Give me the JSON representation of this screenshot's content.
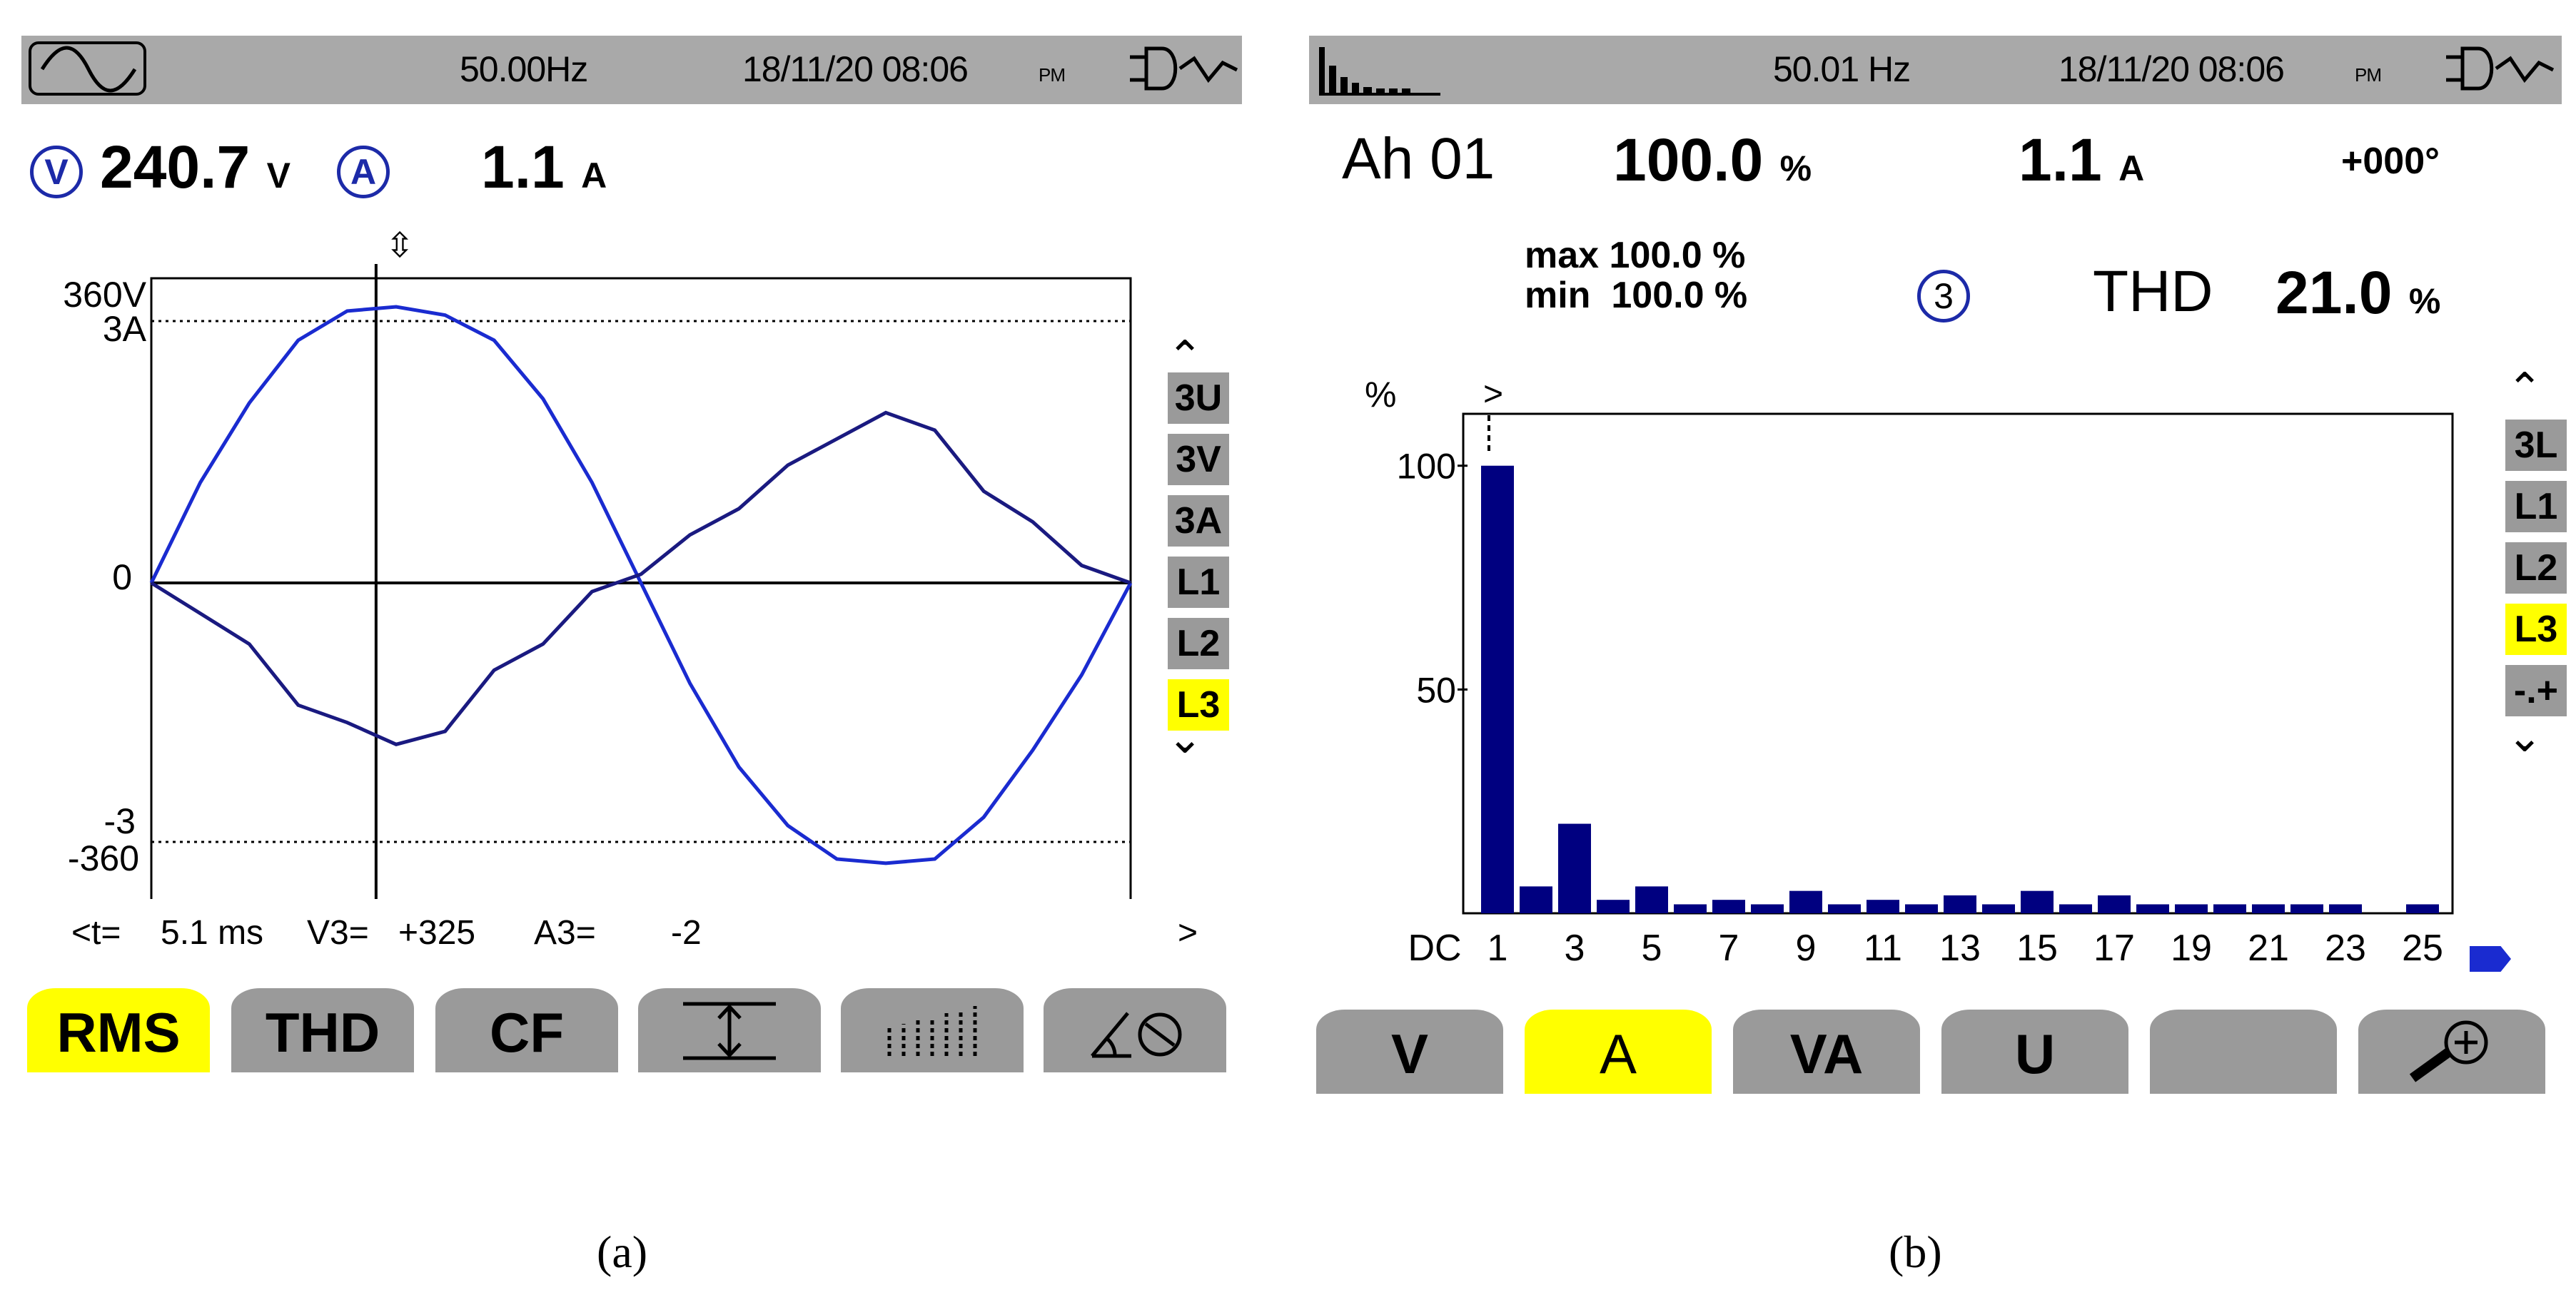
{
  "panel_a": {
    "topbar": {
      "frequency": "50.00Hz",
      "datetime": "18/11/20  08:06",
      "ampm": "PM"
    },
    "readings": {
      "voltage_icon": "V",
      "voltage": "240.7",
      "voltage_unit": "V",
      "current_icon": "A",
      "current": "1.1",
      "current_unit": "A"
    },
    "axis": {
      "top_v": "360V",
      "top_a": "3A",
      "zero": "0",
      "bottom_a": "-3",
      "bottom_v": "-360"
    },
    "cursor_marker": "⇳",
    "side_buttons": [
      "3U",
      "3V",
      "3A",
      "L1",
      "L2",
      "L3"
    ],
    "selected_side": "L3",
    "cursor_readout": {
      "t_label": "<t=",
      "t_value": "5.1 ms",
      "v_label": "V3=",
      "v_value": "+325",
      "a_label": "A3=",
      "a_value": "-2",
      "next": ">"
    },
    "function_buttons": [
      "RMS",
      "THD",
      "CF",
      "",
      "",
      ""
    ],
    "selected_function": "RMS",
    "caption": "(a)"
  },
  "panel_b": {
    "topbar": {
      "frequency": "50.01 Hz",
      "datetime": "18/11/20  08:06",
      "ampm": "PM"
    },
    "readings": {
      "harmonic": "Ah 01",
      "percent": "100.0",
      "percent_unit": "%",
      "current": "1.1",
      "current_unit": "A",
      "phase": "+000°"
    },
    "stats": {
      "max_label": "max",
      "max_value": "100.0 %",
      "min_label": "min",
      "min_value": "100.0 %",
      "phase_icon": "3",
      "thd_label": "THD",
      "thd_value": "21.0",
      "thd_unit": "%"
    },
    "side_buttons": [
      "3L",
      "L1",
      "L2",
      "L3",
      "-.+"
    ],
    "selected_side": "L3",
    "function_buttons": [
      "V",
      "A",
      "VA",
      "U",
      "",
      ""
    ],
    "selected_function": "A",
    "caption": "(b)"
  },
  "chart_data": [
    {
      "type": "line",
      "ylim": [
        -360,
        360
      ],
      "ytick_labels": [
        "360V",
        "3A",
        "0",
        "-3",
        "-360"
      ],
      "series": [
        {
          "name": "V3",
          "color": "#1a2bd0",
          "x_ms": [
            0,
            1,
            2,
            3,
            4,
            5,
            6,
            7,
            8,
            9,
            10,
            11,
            12,
            13,
            14,
            15,
            16,
            17,
            18,
            19,
            20
          ],
          "values": [
            0,
            120,
            215,
            290,
            325,
            330,
            320,
            290,
            220,
            120,
            0,
            -120,
            -220,
            -290,
            -330,
            -335,
            -330,
            -280,
            -200,
            -110,
            0
          ]
        },
        {
          "name": "A3",
          "color": "#1a1a80",
          "x_ms": [
            0,
            1,
            2,
            3,
            4,
            5,
            6,
            7,
            8,
            9,
            10,
            11,
            12,
            13,
            14,
            15,
            16,
            17,
            18,
            19,
            20
          ],
          "values": [
            0,
            -0.35,
            -0.7,
            -1.4,
            -1.6,
            -1.85,
            -1.7,
            -1.0,
            -0.7,
            -0.1,
            0.1,
            0.55,
            0.85,
            1.35,
            1.65,
            1.95,
            1.75,
            1.05,
            0.7,
            0.2,
            0
          ]
        }
      ]
    },
    {
      "type": "bar",
      "ylabel": "%",
      "ylim": [
        0,
        110
      ],
      "yticks": [
        50,
        100
      ],
      "xtick_labels": [
        "DC",
        "1",
        "3",
        "5",
        "7",
        "9",
        "11",
        "13",
        "15",
        "17",
        "19",
        "21",
        "23",
        "25"
      ],
      "categories": [
        1,
        2,
        3,
        4,
        5,
        6,
        7,
        8,
        9,
        10,
        11,
        12,
        13,
        14,
        15,
        16,
        17,
        18,
        19,
        20,
        21,
        22,
        23,
        24,
        25
      ],
      "values": [
        100,
        6,
        20,
        3,
        6,
        2,
        3,
        2,
        5,
        2,
        3,
        2,
        4,
        2,
        5,
        2,
        4,
        2,
        2,
        2,
        2,
        2,
        2,
        0,
        2
      ],
      "color": "#000080"
    }
  ]
}
